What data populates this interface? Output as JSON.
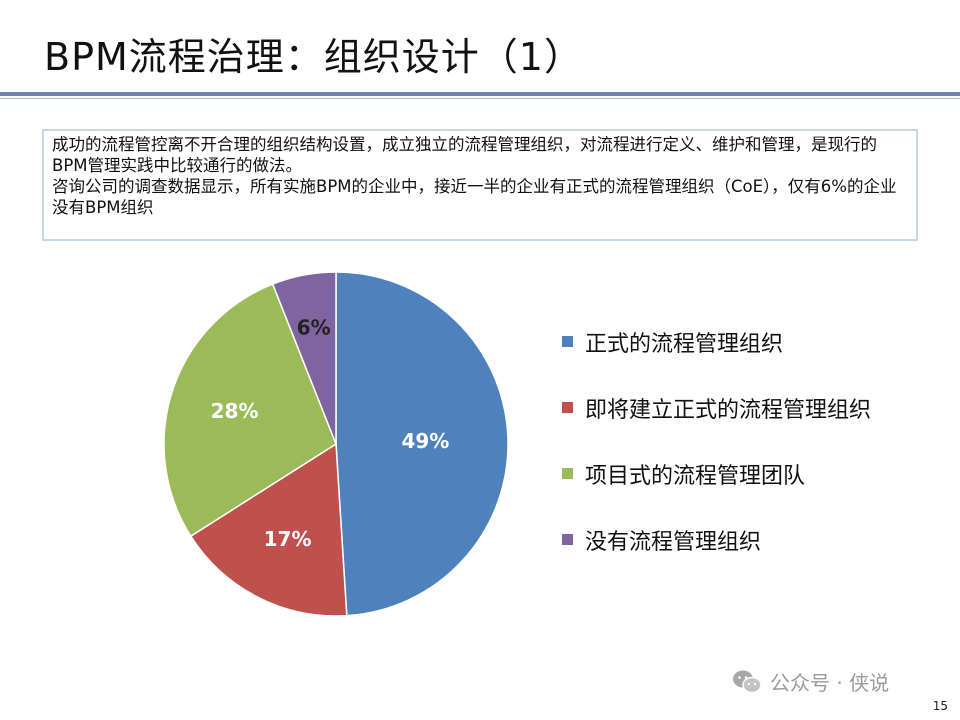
{
  "slide": {
    "title": "BPM流程治理：组织设计（1）",
    "page_number": "15",
    "watermark": "公众号 · 侠说",
    "watermark_icon": "wechat-icon"
  },
  "intro": {
    "paragraph1": "成功的流程管控离不开合理的组织结构设置，成立独立的流程管理组织，对流程进行定义、维护和管理，是现行的BPM管理实践中比较通行的做法。",
    "paragraph2": "咨询公司的调查数据显示，所有实施BPM的企业中，接近一半的企业有正式的流程管理组织（CoE），仅有6%的企业没有BPM组织"
  },
  "chart_data": {
    "type": "pie",
    "categories": [
      "正式的流程管理组织",
      "即将建立正式的流程管理组织",
      "项目式的流程管理团队",
      "没有流程管理组织"
    ],
    "values": [
      49,
      17,
      28,
      6
    ],
    "data_labels": [
      "49%",
      "17%",
      "28%",
      "6%"
    ],
    "colors": [
      "#4f81bd",
      "#c0504d",
      "#9bbb59",
      "#8064a2"
    ],
    "legend_placement": "right",
    "title": ""
  }
}
